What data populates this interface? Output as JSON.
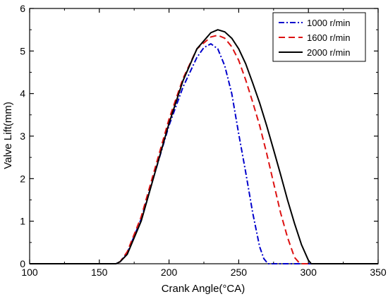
{
  "chart_data": {
    "type": "line",
    "title": "",
    "xlabel": "Crank Angle(°CA)",
    "ylabel": "Valve Lift(mm)",
    "xlim": [
      100,
      350
    ],
    "ylim": [
      0,
      6
    ],
    "x_ticks": [
      100,
      150,
      200,
      250,
      300,
      350
    ],
    "y_ticks": [
      0,
      1,
      2,
      3,
      4,
      5,
      6
    ],
    "grid": false,
    "legend_position": "top-right",
    "series": [
      {
        "name": "1000 r/min",
        "color": "#0000cc",
        "dash": "dash-dot",
        "x": [
          100,
          162,
          165,
          170,
          180,
          190,
          200,
          210,
          220,
          225,
          230,
          235,
          240,
          245,
          250,
          255,
          260,
          265,
          268,
          271,
          350
        ],
        "y": [
          0,
          0,
          0.05,
          0.25,
          1.05,
          2.15,
          3.25,
          4.15,
          4.85,
          5.08,
          5.17,
          5.05,
          4.65,
          4.0,
          3.05,
          2.15,
          1.2,
          0.4,
          0.12,
          0,
          0
        ]
      },
      {
        "name": "1600 r/min",
        "color": "#dd1111",
        "dash": "dashed",
        "x": [
          100,
          162,
          165,
          170,
          180,
          190,
          200,
          210,
          220,
          230,
          235,
          240,
          245,
          250,
          255,
          260,
          265,
          270,
          275,
          280,
          285,
          290,
          294,
          350
        ],
        "y": [
          0,
          0,
          0.05,
          0.28,
          1.1,
          2.25,
          3.4,
          4.35,
          5.05,
          5.33,
          5.37,
          5.3,
          5.1,
          4.78,
          4.32,
          3.8,
          3.25,
          2.6,
          1.9,
          1.2,
          0.62,
          0.15,
          0,
          0
        ]
      },
      {
        "name": "2000 r/min",
        "color": "#000000",
        "dash": "solid",
        "x": [
          100,
          162,
          165,
          170,
          180,
          190,
          200,
          210,
          220,
          230,
          235,
          240,
          245,
          250,
          255,
          260,
          265,
          270,
          275,
          280,
          285,
          290,
          295,
          300,
          302,
          350
        ],
        "y": [
          0,
          0,
          0.05,
          0.22,
          1.0,
          2.15,
          3.3,
          4.3,
          5.05,
          5.43,
          5.5,
          5.45,
          5.3,
          5.05,
          4.7,
          4.25,
          3.78,
          3.25,
          2.68,
          2.1,
          1.5,
          0.95,
          0.45,
          0.08,
          0,
          0
        ]
      }
    ]
  }
}
